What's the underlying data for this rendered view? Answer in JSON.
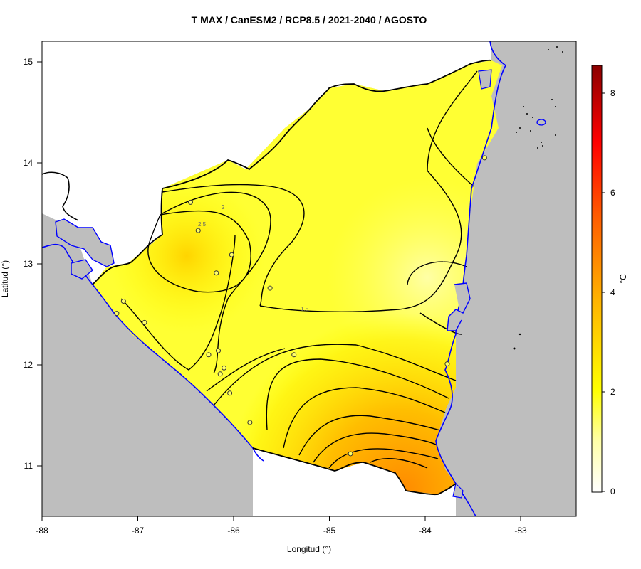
{
  "map": {
    "title": "T MAX / CanESM2 / RCP8.5 / 2021-2040 / AGOSTO",
    "xlabel": "Longitud (°)",
    "ylabel": "Latitud (°)",
    "x_ticks": [
      "-88",
      "-87",
      "-86",
      "-85",
      "-84",
      "-83"
    ],
    "y_ticks": [
      "11",
      "12",
      "13",
      "14",
      "15"
    ],
    "contour_labels": [
      "1",
      "1.5",
      "2",
      "2.5"
    ]
  },
  "colorbar": {
    "unit": "°C",
    "ticks": [
      "0",
      "2",
      "4",
      "6",
      "8"
    ],
    "range": [
      0,
      8.6
    ]
  },
  "colors": {
    "sea": "#bebebe",
    "coast": "#0000ff",
    "border": "#000000",
    "low": "#ffffa0",
    "mid": "#ffff00",
    "high": "#ff8c00"
  },
  "chart_data": {
    "type": "heatmap",
    "title": "T MAX / CanESM2 / RCP8.5 / 2021-2040 / AGOSTO",
    "xlabel": "Longitud (°)",
    "ylabel": "Latitud (°)",
    "xlim": [
      -88,
      -82.4
    ],
    "ylim": [
      10.5,
      15.2
    ],
    "value_range": [
      0,
      8.6
    ],
    "contour_levels": [
      1,
      1.5,
      2,
      2.5
    ],
    "stations": [
      {
        "lon": -86.45,
        "lat": 13.61
      },
      {
        "lon": -86.37,
        "lat": 13.33
      },
      {
        "lon": -86.02,
        "lat": 13.09
      },
      {
        "lon": -86.18,
        "lat": 12.91
      },
      {
        "lon": -85.62,
        "lat": 12.76
      },
      {
        "lon": -87.15,
        "lat": 12.63
      },
      {
        "lon": -87.22,
        "lat": 12.51
      },
      {
        "lon": -86.93,
        "lat": 12.42
      },
      {
        "lon": -86.26,
        "lat": 12.1
      },
      {
        "lon": -86.16,
        "lat": 12.14
      },
      {
        "lon": -85.37,
        "lat": 12.1
      },
      {
        "lon": -86.1,
        "lat": 11.97
      },
      {
        "lon": -86.14,
        "lat": 11.91
      },
      {
        "lon": -86.04,
        "lat": 11.72
      },
      {
        "lon": -85.83,
        "lat": 11.43
      },
      {
        "lon": -84.78,
        "lat": 11.12
      },
      {
        "lon": -83.77,
        "lat": 12.01
      },
      {
        "lon": -83.38,
        "lat": 14.05
      }
    ]
  }
}
